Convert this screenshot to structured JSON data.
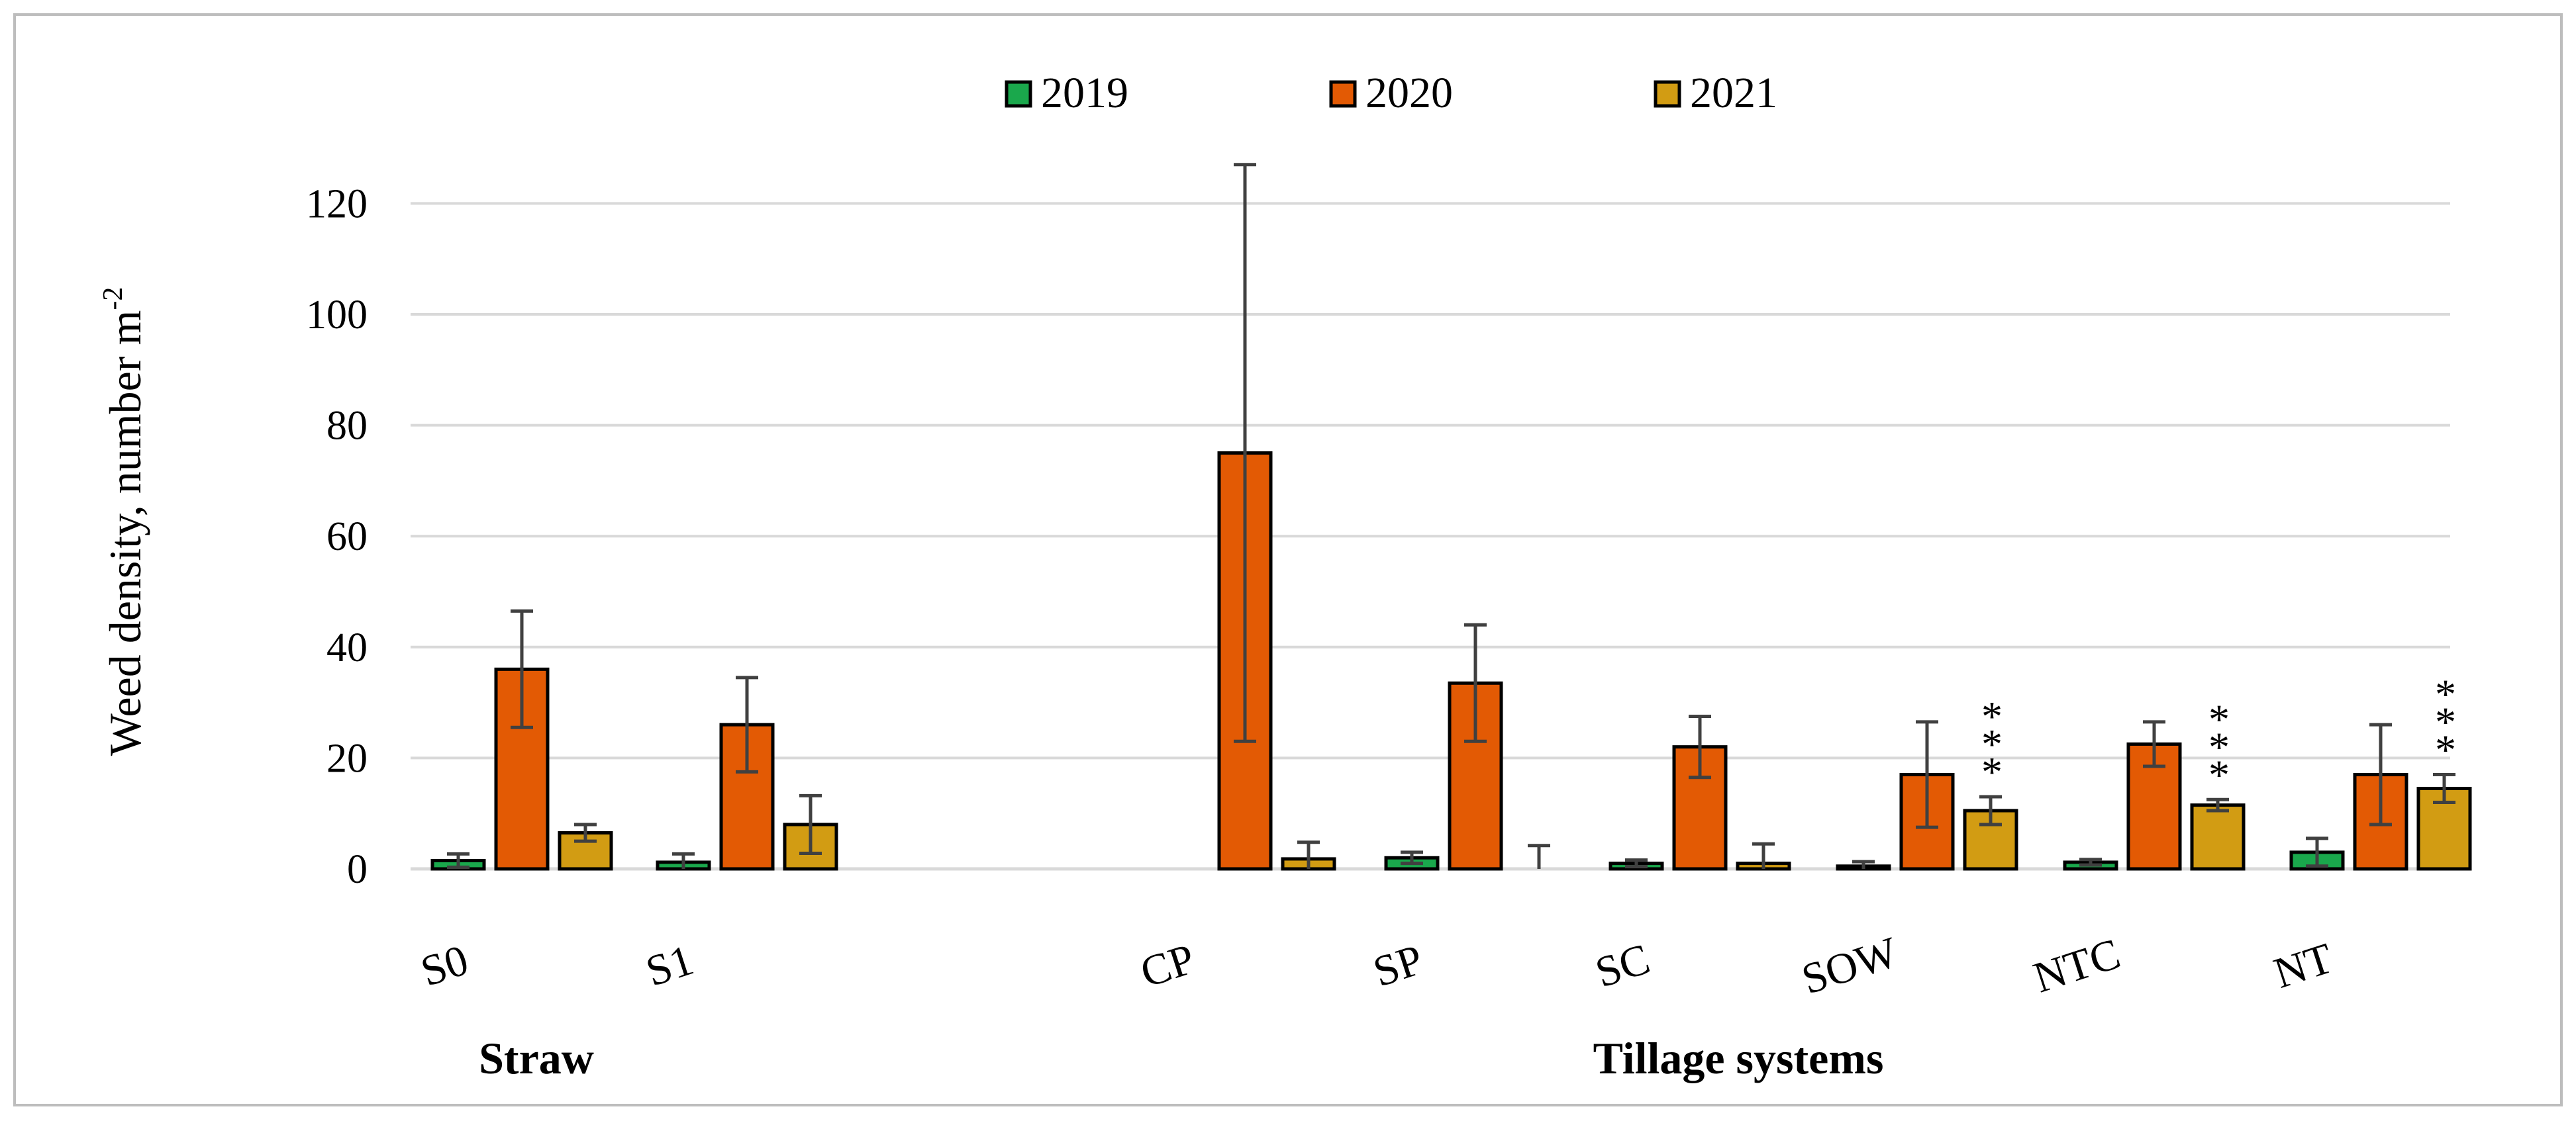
{
  "chart_data": {
    "type": "bar",
    "title": "",
    "ylabel": "Weed density, number m",
    "ylabel_superscript": "-2",
    "ylim": [
      0,
      120
    ],
    "yticks": [
      "0",
      "20",
      "40",
      "60",
      "80",
      "100",
      "120"
    ],
    "categories": [
      "S0",
      "S1",
      "CP",
      "SP",
      "SC",
      "SOW",
      "NTC",
      "NT"
    ],
    "groups": [
      {
        "label": "Straw",
        "categories": [
          "S0",
          "S1"
        ]
      },
      {
        "label": "Tillage systems",
        "categories": [
          "CP",
          "SP",
          "SC",
          "SOW",
          "NTC",
          "NT"
        ]
      }
    ],
    "legend_position": "top-center",
    "series": [
      {
        "name": "2019",
        "color": "#1aa84c",
        "values": [
          1.5,
          1.2,
          0,
          2.0,
          1.0,
          0.5,
          1.2,
          3.0
        ],
        "errors": [
          1.2,
          1.5,
          0,
          1.0,
          0.6,
          0.8,
          0.5,
          2.5
        ]
      },
      {
        "name": "2020",
        "color": "#e35a04",
        "values": [
          36,
          26,
          75,
          33.5,
          22,
          17,
          22.5,
          17
        ],
        "errors": [
          10.5,
          8.5,
          52,
          10.5,
          5.5,
          9.5,
          4,
          9
        ]
      },
      {
        "name": "2021",
        "color": "#d29c13",
        "values": [
          6.5,
          8,
          1.8,
          0,
          1.0,
          10.5,
          11.5,
          14.5
        ],
        "errors": [
          1.5,
          5.2,
          3.0,
          4.2,
          3.5,
          2.5,
          1.0,
          2.5
        ]
      }
    ],
    "annotations": [
      {
        "category": "SOW",
        "series": "2021",
        "text": "***"
      },
      {
        "category": "NTC",
        "series": "2021",
        "text": "***"
      },
      {
        "category": "NT",
        "series": "2021",
        "text": "***"
      }
    ],
    "grid": true
  }
}
